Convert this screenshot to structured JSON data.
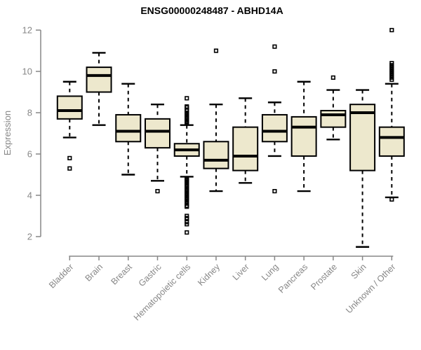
{
  "title": "ENSG00000248487 - ABHD14A",
  "chart_data": {
    "type": "boxplot",
    "title": "ENSG00000248487 - ABHD14A",
    "xlabel": "",
    "ylabel": "Expression",
    "ylim": [
      1.3,
      12.2
    ],
    "yticks": [
      2,
      4,
      6,
      8,
      10,
      12
    ],
    "grid": false,
    "legend": "none",
    "categories": [
      "Bladder",
      "Brain",
      "Breast",
      "Gastric",
      "Hematopoietic cells",
      "Kidney",
      "Liver",
      "Lung",
      "Pancreas",
      "Prostate",
      "Skin",
      "Unknown / Other"
    ],
    "boxes": [
      {
        "category": "Bladder",
        "whisker_low": 6.8,
        "q1": 7.7,
        "median": 8.1,
        "q3": 8.8,
        "whisker_high": 9.5,
        "outliers": [
          5.8,
          5.3
        ]
      },
      {
        "category": "Brain",
        "whisker_low": 7.4,
        "q1": 9.0,
        "median": 9.8,
        "q3": 10.2,
        "whisker_high": 10.9,
        "outliers": []
      },
      {
        "category": "Breast",
        "whisker_low": 5.0,
        "q1": 6.6,
        "median": 7.1,
        "q3": 7.9,
        "whisker_high": 9.4,
        "outliers": []
      },
      {
        "category": "Gastric",
        "whisker_low": 4.7,
        "q1": 6.3,
        "median": 7.1,
        "q3": 7.7,
        "whisker_high": 8.4,
        "outliers": [
          4.2
        ]
      },
      {
        "category": "Hematopoietic cells",
        "whisker_low": 4.9,
        "q1": 5.9,
        "median": 6.2,
        "q3": 6.5,
        "whisker_high": 7.4,
        "outliers": [
          8.7,
          8.3,
          8.25,
          8.15,
          8.1,
          8.0,
          7.95,
          7.9,
          7.8,
          7.75,
          7.7,
          7.6,
          7.55,
          7.5,
          4.8,
          4.75,
          4.7,
          4.65,
          4.6,
          4.5,
          4.45,
          4.4,
          4.3,
          4.25,
          4.2,
          4.1,
          4.05,
          4.0,
          3.9,
          3.85,
          3.8,
          3.7,
          3.6,
          3.5,
          3.45,
          3.0,
          2.9,
          2.85,
          2.7,
          2.6,
          2.2
        ]
      },
      {
        "category": "Kidney",
        "whisker_low": 4.2,
        "q1": 5.3,
        "median": 5.7,
        "q3": 6.6,
        "whisker_high": 8.4,
        "outliers": [
          11.0
        ]
      },
      {
        "category": "Liver",
        "whisker_low": 4.6,
        "q1": 5.2,
        "median": 5.9,
        "q3": 7.3,
        "whisker_high": 8.7,
        "outliers": []
      },
      {
        "category": "Lung",
        "whisker_low": 5.9,
        "q1": 6.6,
        "median": 7.1,
        "q3": 7.9,
        "whisker_high": 8.5,
        "outliers": [
          11.2,
          10.0,
          4.2
        ]
      },
      {
        "category": "Pancreas",
        "whisker_low": 4.2,
        "q1": 5.9,
        "median": 7.3,
        "q3": 7.8,
        "whisker_high": 9.5,
        "outliers": []
      },
      {
        "category": "Prostate",
        "whisker_low": 6.7,
        "q1": 7.3,
        "median": 7.9,
        "q3": 8.1,
        "whisker_high": 9.1,
        "outliers": [
          9.7
        ]
      },
      {
        "category": "Skin",
        "whisker_low": 1.5,
        "q1": 5.2,
        "median": 8.0,
        "q3": 8.4,
        "whisker_high": 9.1,
        "outliers": []
      },
      {
        "category": "Unknown / Other",
        "whisker_low": 3.9,
        "q1": 5.9,
        "median": 6.8,
        "q3": 7.3,
        "whisker_high": 9.4,
        "outliers": [
          12.0,
          10.4,
          10.3,
          10.2,
          10.1,
          10.0,
          9.9,
          9.8,
          9.7,
          9.6,
          3.8
        ]
      }
    ],
    "colors": {
      "box_fill": "#EDE8CD",
      "box_border": "#000000",
      "median": "#000000",
      "whisker": "#000000",
      "axis": "#878787",
      "title": "#000000",
      "background": "#ffffff"
    }
  }
}
